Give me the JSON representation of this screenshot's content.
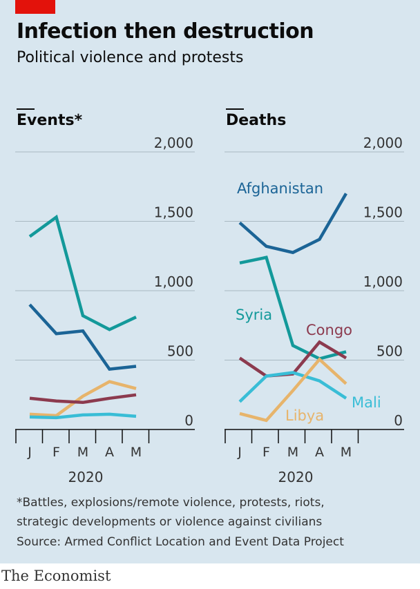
{
  "header": {
    "title": "Infection then destruction",
    "subtitle": "Political violence and protests"
  },
  "footnotes": {
    "note": "*Battles, explosions/remote violence, protests, riots,",
    "note2": "strategic developments or violence against civilians",
    "source": "Source: Armed Conflict Location and Event Data Project"
  },
  "brand": "The Economist",
  "colors": {
    "afghanistan": "#1b6496",
    "syria": "#13999a",
    "congo": "#8c3a4e",
    "libya": "#e7b46b",
    "mali": "#39bdd6"
  },
  "chart_data": [
    {
      "type": "line",
      "title": "Events*",
      "categories": [
        "J",
        "F",
        "M",
        "A",
        "M"
      ],
      "year_label": "2020",
      "y_ticks": [
        "2,000",
        "1,500",
        "1,000",
        "500",
        "0"
      ],
      "ylim": [
        0,
        2000
      ],
      "grid": true,
      "series": [
        {
          "key": "syria",
          "values": [
            1390,
            1530,
            820,
            720,
            810
          ]
        },
        {
          "key": "afghanistan",
          "values": [
            900,
            690,
            710,
            435,
            455
          ]
        },
        {
          "key": "libya",
          "values": [
            110,
            100,
            240,
            345,
            295
          ]
        },
        {
          "key": "congo",
          "values": [
            225,
            205,
            195,
            225,
            250
          ]
        },
        {
          "key": "mali",
          "values": [
            90,
            85,
            105,
            110,
            95
          ]
        }
      ]
    },
    {
      "type": "line",
      "title": "Deaths",
      "categories": [
        "J",
        "F",
        "M",
        "A",
        "M"
      ],
      "year_label": "2020",
      "y_ticks": [
        "2,000",
        "1,500",
        "1,000",
        "500",
        "0"
      ],
      "ylim": [
        0,
        2000
      ],
      "grid": true,
      "series": [
        {
          "key": "afghanistan",
          "name": "Afghanistan",
          "values": [
            1490,
            1320,
            1275,
            1370,
            1700
          ]
        },
        {
          "key": "syria",
          "name": "Syria",
          "values": [
            1200,
            1240,
            605,
            510,
            560
          ]
        },
        {
          "key": "congo",
          "name": "Congo",
          "values": [
            515,
            385,
            400,
            630,
            515
          ]
        },
        {
          "key": "mali",
          "name": "Mali",
          "values": [
            200,
            385,
            410,
            350,
            225
          ]
        },
        {
          "key": "libya",
          "name": "Libya",
          "values": [
            115,
            65,
            280,
            505,
            330
          ]
        }
      ]
    }
  ]
}
